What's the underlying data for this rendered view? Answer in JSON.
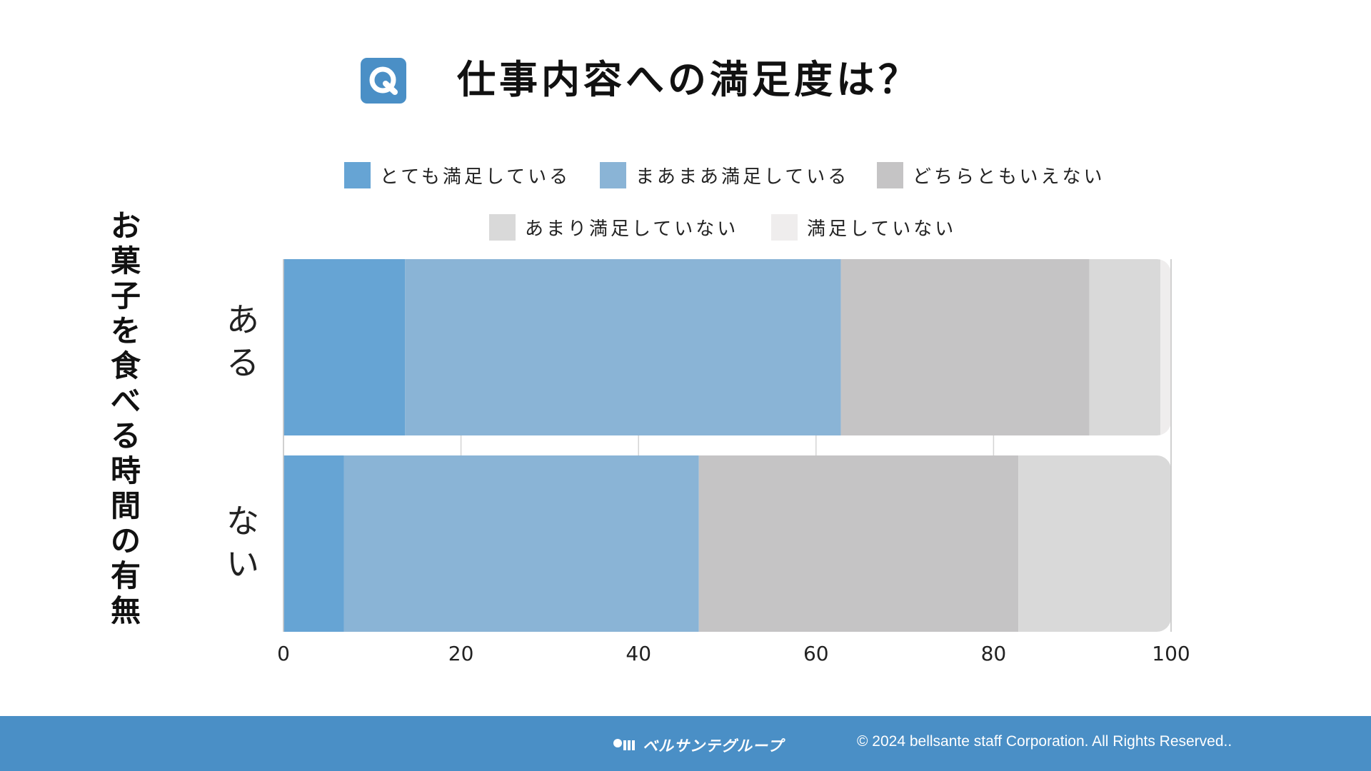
{
  "title": "仕事内容への満足度は？",
  "title_icon": "q-icon",
  "y_axis_title": "お菓子を食べる時間の有無",
  "chart_data": {
    "type": "bar",
    "orientation": "horizontal",
    "stacked": true,
    "categories": [
      "ある",
      "ない"
    ],
    "series": [
      {
        "name": "とても満足している",
        "color": "#66a4d4",
        "values": [
          13.7,
          6.8
        ]
      },
      {
        "name": "まあまあ満足している",
        "color": "#8ab4d6",
        "values": [
          49.1,
          40.0
        ]
      },
      {
        "name": "どちらともいえない",
        "color": "#c5c4c5",
        "values": [
          28.0,
          36.0
        ]
      },
      {
        "name": "あまり満足していない",
        "color": "#d9d9d9",
        "values": [
          8.0,
          17.2
        ]
      },
      {
        "name": "満足していない",
        "color": "#efeded",
        "values": [
          1.2,
          0.0
        ]
      }
    ],
    "xlim": [
      0,
      100
    ],
    "xticks": [
      "0",
      "20",
      "40",
      "60",
      "80",
      "100"
    ],
    "grid": "vertical",
    "legend": "top"
  },
  "footer": {
    "logo_text": "ベルサンテグループ",
    "logo_icon": "bellsante-logo-icon",
    "copyright": "© 2024 bellsante staff Corporation. All Rights Reserved..",
    "background": "#4a8fc6"
  }
}
